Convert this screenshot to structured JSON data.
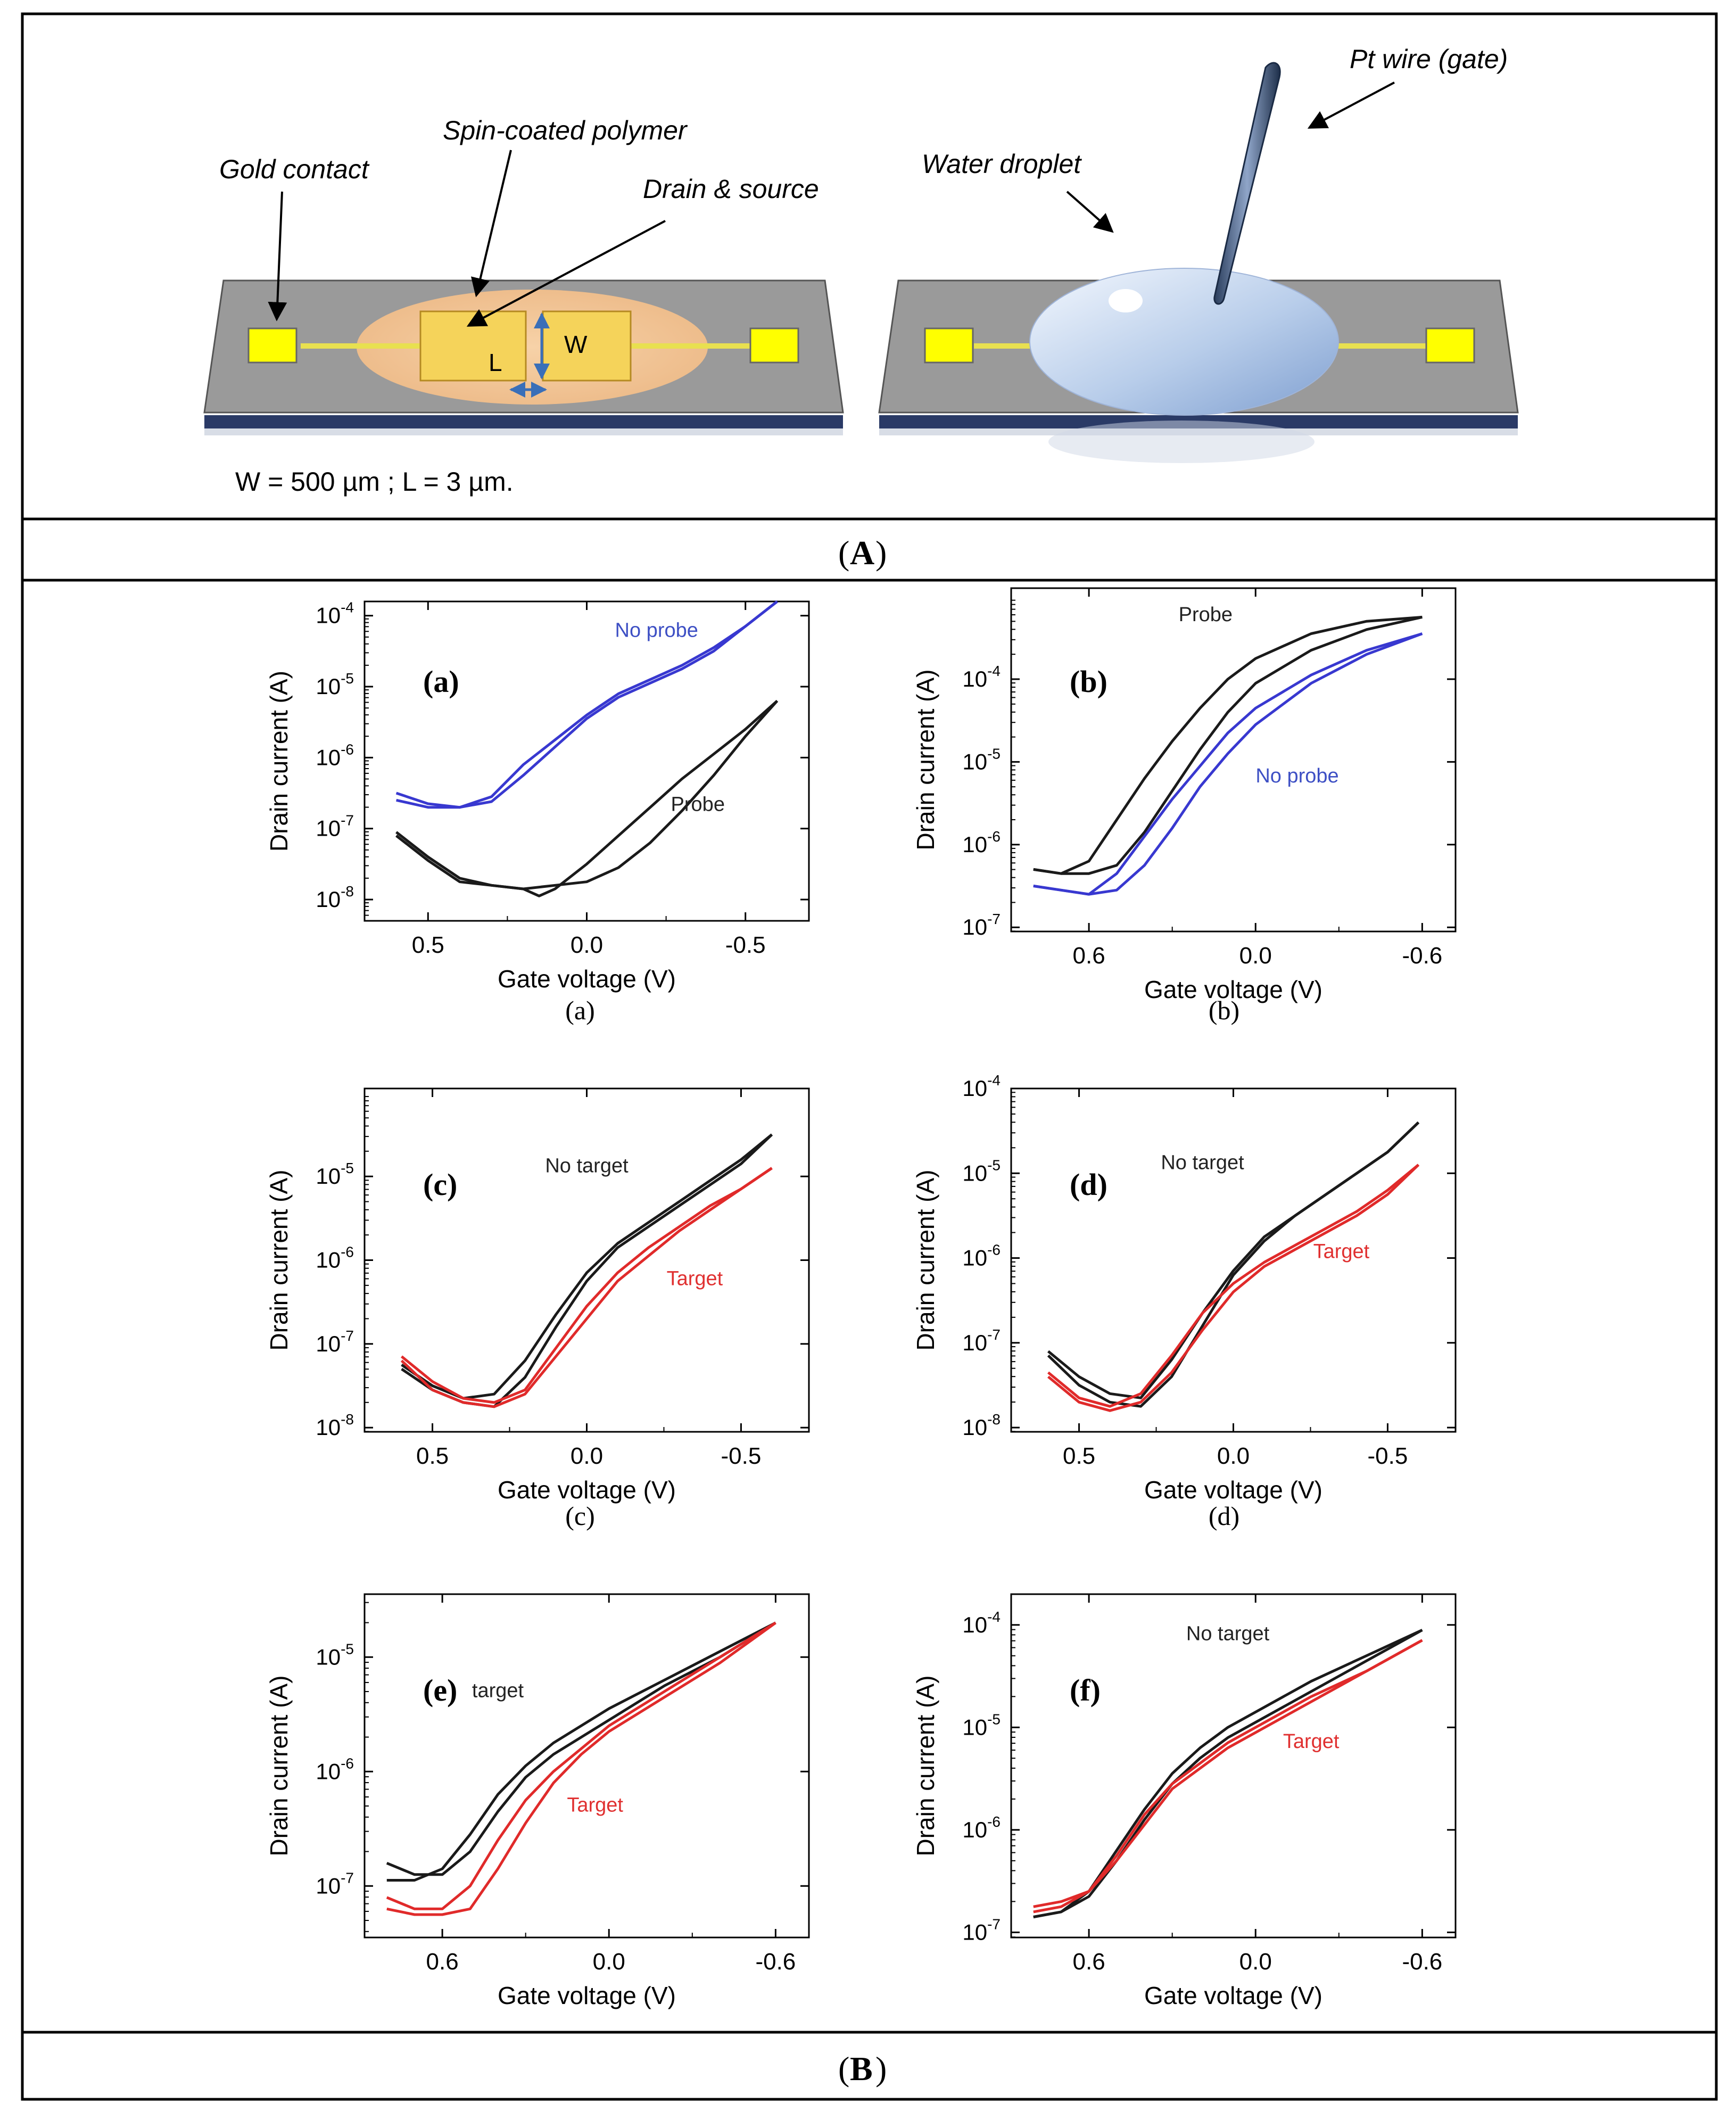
{
  "diagram": {
    "labels": {
      "gold_contact": "Gold contact",
      "spin_coated": "Spin-coated polymer",
      "drain_source": "Drain & source",
      "L": "L",
      "W": "W",
      "water_droplet": "Water droplet",
      "pt_wire": "Pt wire (gate)",
      "dimensions": "W = 500 µm ; L = 3 µm."
    },
    "colors": {
      "gold": "#f5d35a",
      "pad": "#ffff00",
      "substrate": "#9a9a9a",
      "polymer": "#f2c89a",
      "droplet": "#b8cdea"
    }
  },
  "captions": {
    "A": "A",
    "B": "B"
  },
  "chart_data": [
    {
      "id": "a",
      "type": "line",
      "panel_label": "(a)",
      "caption": "(a)",
      "xlabel": "Gate voltage (V)",
      "ylabel": "Drain current (A)",
      "xlim": [
        0.7,
        -0.7
      ],
      "xticks": [
        0.5,
        0.0,
        -0.5
      ],
      "xtick_labels": [
        "0.5",
        "0.0",
        "-0.5"
      ],
      "ylog": true,
      "ylim": [
        -8.3,
        -3.8
      ],
      "yticks": [
        -8,
        -7,
        -6,
        -5,
        -4
      ],
      "annotations": [
        {
          "text": "No probe",
          "color": "#3d4fc4",
          "x": -0.22,
          "y": -4.3
        },
        {
          "text": "Probe",
          "color": "#222222",
          "x": -0.35,
          "y": -6.75
        }
      ],
      "series": [
        {
          "name": "No probe",
          "color": "#3838d0",
          "x": [
            0.6,
            0.5,
            0.4,
            0.3,
            0.2,
            0.1,
            0.0,
            -0.1,
            -0.2,
            -0.3,
            -0.4,
            -0.5,
            -0.6
          ],
          "y": [
            -6.5,
            -6.65,
            -6.7,
            -6.62,
            -6.25,
            -5.85,
            -5.45,
            -5.15,
            -4.95,
            -4.75,
            -4.5,
            -4.15,
            -3.8
          ]
        },
        {
          "name": "No probe",
          "color": "#3838d0",
          "x": [
            0.6,
            0.5,
            0.4,
            0.3,
            0.2,
            0.1,
            0.0,
            -0.1,
            -0.2,
            -0.3,
            -0.4,
            -0.5,
            -0.6
          ],
          "y": [
            -6.6,
            -6.7,
            -6.7,
            -6.55,
            -6.1,
            -5.75,
            -5.4,
            -5.1,
            -4.9,
            -4.7,
            -4.45,
            -4.15,
            -3.8
          ]
        },
        {
          "name": "Probe",
          "color": "#1a1a1a",
          "x": [
            0.6,
            0.5,
            0.4,
            0.3,
            0.2,
            0.15,
            0.1,
            0.0,
            -0.1,
            -0.2,
            -0.3,
            -0.4,
            -0.5,
            -0.6
          ],
          "y": [
            -7.05,
            -7.4,
            -7.7,
            -7.8,
            -7.85,
            -7.95,
            -7.85,
            -7.5,
            -7.1,
            -6.7,
            -6.3,
            -5.95,
            -5.6,
            -5.2
          ]
        },
        {
          "name": "Probe",
          "color": "#1a1a1a",
          "x": [
            0.6,
            0.5,
            0.4,
            0.3,
            0.2,
            0.1,
            0.0,
            -0.1,
            -0.2,
            -0.3,
            -0.4,
            -0.5,
            -0.6
          ],
          "y": [
            -7.1,
            -7.45,
            -7.75,
            -7.8,
            -7.85,
            -7.8,
            -7.75,
            -7.55,
            -7.2,
            -6.75,
            -6.25,
            -5.7,
            -5.2
          ]
        }
      ]
    },
    {
      "id": "b",
      "type": "line",
      "panel_label": "(b)",
      "caption": "(b)",
      "xlabel": "Gate voltage (V)",
      "ylabel": "Drain current (A)",
      "xlim": [
        0.88,
        -0.72
      ],
      "xticks": [
        0.6,
        0.0,
        -0.6
      ],
      "xtick_labels": [
        "0.6",
        "0.0",
        "-0.6"
      ],
      "ylog": true,
      "ylim": [
        -7.05,
        -2.9
      ],
      "yticks": [
        -7,
        -6,
        -5,
        -4
      ],
      "annotations": [
        {
          "text": "Probe",
          "color": "#222222",
          "x": 0.18,
          "y": -3.3
        },
        {
          "text": "No probe",
          "color": "#3d4fc4",
          "x": -0.15,
          "y": -5.25
        }
      ],
      "series": [
        {
          "name": "Probe",
          "color": "#1a1a1a",
          "x": [
            0.8,
            0.7,
            0.6,
            0.5,
            0.4,
            0.3,
            0.2,
            0.1,
            0.0,
            -0.2,
            -0.4,
            -0.6
          ],
          "y": [
            -6.3,
            -6.35,
            -6.35,
            -6.25,
            -5.85,
            -5.35,
            -4.85,
            -4.4,
            -4.05,
            -3.65,
            -3.4,
            -3.25
          ]
        },
        {
          "name": "Probe",
          "color": "#1a1a1a",
          "x": [
            0.8,
            0.7,
            0.6,
            0.5,
            0.4,
            0.3,
            0.2,
            0.1,
            0.0,
            -0.2,
            -0.4,
            -0.6
          ],
          "y": [
            -6.3,
            -6.35,
            -6.2,
            -5.7,
            -5.2,
            -4.75,
            -4.35,
            -4.0,
            -3.75,
            -3.45,
            -3.3,
            -3.25
          ]
        },
        {
          "name": "No probe",
          "color": "#3838d0",
          "x": [
            0.8,
            0.7,
            0.6,
            0.5,
            0.4,
            0.3,
            0.2,
            0.1,
            0.0,
            -0.2,
            -0.4,
            -0.6
          ],
          "y": [
            -6.5,
            -6.55,
            -6.6,
            -6.55,
            -6.25,
            -5.8,
            -5.3,
            -4.9,
            -4.55,
            -4.05,
            -3.7,
            -3.45
          ]
        },
        {
          "name": "No probe",
          "color": "#3838d0",
          "x": [
            0.8,
            0.7,
            0.6,
            0.5,
            0.4,
            0.3,
            0.2,
            0.1,
            0.0,
            -0.2,
            -0.4,
            -0.6
          ],
          "y": [
            -6.5,
            -6.55,
            -6.6,
            -6.35,
            -5.9,
            -5.45,
            -5.05,
            -4.65,
            -4.35,
            -3.95,
            -3.65,
            -3.45
          ]
        }
      ]
    },
    {
      "id": "c",
      "type": "line",
      "panel_label": "(c)",
      "caption": "(c)",
      "xlabel": "Gate voltage (V)",
      "ylabel": "Drain current (A)",
      "xlim": [
        0.72,
        -0.72
      ],
      "xticks": [
        0.5,
        0.0,
        -0.5
      ],
      "xtick_labels": [
        "0.5",
        "0.0",
        "-0.5"
      ],
      "ylog": true,
      "ylim": [
        -8.05,
        -3.95
      ],
      "yticks": [
        -8,
        -7,
        -6,
        -5
      ],
      "annotations": [
        {
          "text": "No target",
          "color": "#222222",
          "x": 0.0,
          "y": -4.95
        },
        {
          "text": "Target",
          "color": "#e03030",
          "x": -0.35,
          "y": -6.3
        }
      ],
      "series": [
        {
          "name": "No target",
          "color": "#1a1a1a",
          "x": [
            0.6,
            0.5,
            0.4,
            0.3,
            0.2,
            0.1,
            0.0,
            -0.1,
            -0.2,
            -0.3,
            -0.4,
            -0.5,
            -0.6
          ],
          "y": [
            -7.25,
            -7.5,
            -7.65,
            -7.6,
            -7.2,
            -6.65,
            -6.15,
            -5.8,
            -5.55,
            -5.3,
            -5.05,
            -4.8,
            -4.5
          ]
        },
        {
          "name": "No target",
          "color": "#1a1a1a",
          "x": [
            0.6,
            0.5,
            0.4,
            0.3,
            0.2,
            0.1,
            0.0,
            -0.1,
            -0.2,
            -0.3,
            -0.4,
            -0.5,
            -0.6
          ],
          "y": [
            -7.3,
            -7.55,
            -7.7,
            -7.75,
            -7.4,
            -6.8,
            -6.25,
            -5.85,
            -5.6,
            -5.35,
            -5.1,
            -4.85,
            -4.5
          ]
        },
        {
          "name": "Target",
          "color": "#e02a2a",
          "x": [
            0.6,
            0.5,
            0.4,
            0.3,
            0.2,
            0.1,
            0.0,
            -0.1,
            -0.2,
            -0.3,
            -0.4,
            -0.5,
            -0.6
          ],
          "y": [
            -7.15,
            -7.45,
            -7.65,
            -7.7,
            -7.55,
            -7.05,
            -6.55,
            -6.15,
            -5.85,
            -5.6,
            -5.35,
            -5.15,
            -4.9
          ]
        },
        {
          "name": "Target",
          "color": "#e02a2a",
          "x": [
            0.6,
            0.5,
            0.4,
            0.3,
            0.2,
            0.1,
            0.0,
            -0.1,
            -0.2,
            -0.3,
            -0.4,
            -0.5,
            -0.6
          ],
          "y": [
            -7.2,
            -7.55,
            -7.7,
            -7.75,
            -7.6,
            -7.15,
            -6.7,
            -6.25,
            -5.95,
            -5.65,
            -5.4,
            -5.15,
            -4.9
          ]
        }
      ]
    },
    {
      "id": "d",
      "type": "line",
      "panel_label": "(d)",
      "caption": "(d)",
      "xlabel": "Gate voltage (V)",
      "ylabel": "Drain current (A)",
      "xlim": [
        0.72,
        -0.72
      ],
      "xticks": [
        0.5,
        0.0,
        -0.5
      ],
      "xtick_labels": [
        "0.5",
        "0.0",
        "-0.5"
      ],
      "ylog": true,
      "ylim": [
        -8.05,
        -4.0
      ],
      "yticks": [
        -8,
        -7,
        -6,
        -5,
        -4
      ],
      "annotations": [
        {
          "text": "No target",
          "color": "#222222",
          "x": 0.1,
          "y": -4.95
        },
        {
          "text": "Target",
          "color": "#e03030",
          "x": -0.35,
          "y": -6.0
        }
      ],
      "series": [
        {
          "name": "No target",
          "color": "#1a1a1a",
          "x": [
            0.6,
            0.5,
            0.4,
            0.3,
            0.2,
            0.1,
            0.0,
            -0.1,
            -0.2,
            -0.3,
            -0.4,
            -0.5,
            -0.6
          ],
          "y": [
            -7.1,
            -7.4,
            -7.6,
            -7.65,
            -7.2,
            -6.65,
            -6.15,
            -5.75,
            -5.5,
            -5.25,
            -5.0,
            -4.75,
            -4.4
          ]
        },
        {
          "name": "No target",
          "color": "#1a1a1a",
          "x": [
            0.6,
            0.5,
            0.4,
            0.3,
            0.2,
            0.1,
            0.0,
            -0.1,
            -0.2,
            -0.3,
            -0.4,
            -0.5,
            -0.6
          ],
          "y": [
            -7.15,
            -7.5,
            -7.7,
            -7.75,
            -7.4,
            -6.8,
            -6.2,
            -5.8,
            -5.5,
            -5.25,
            -5.0,
            -4.75,
            -4.4
          ]
        },
        {
          "name": "Target",
          "color": "#e02a2a",
          "x": [
            0.6,
            0.5,
            0.4,
            0.3,
            0.2,
            0.1,
            0.0,
            -0.1,
            -0.2,
            -0.3,
            -0.4,
            -0.5,
            -0.6
          ],
          "y": [
            -7.35,
            -7.65,
            -7.75,
            -7.6,
            -7.15,
            -6.65,
            -6.3,
            -6.05,
            -5.85,
            -5.65,
            -5.45,
            -5.2,
            -4.9
          ]
        },
        {
          "name": "Target",
          "color": "#e02a2a",
          "x": [
            0.6,
            0.5,
            0.4,
            0.3,
            0.2,
            0.1,
            0.0,
            -0.1,
            -0.2,
            -0.3,
            -0.4,
            -0.5,
            -0.6
          ],
          "y": [
            -7.4,
            -7.7,
            -7.8,
            -7.7,
            -7.35,
            -6.85,
            -6.4,
            -6.1,
            -5.9,
            -5.7,
            -5.5,
            -5.25,
            -4.9
          ]
        }
      ]
    },
    {
      "id": "e",
      "type": "line",
      "panel_label": "(e)",
      "caption": "",
      "xlabel": "Gate voltage (V)",
      "ylabel": "Drain current (A)",
      "xlim": [
        0.88,
        -0.72
      ],
      "xticks": [
        0.6,
        0.0,
        -0.6
      ],
      "xtick_labels": [
        "0.6",
        "0.0",
        "-0.6"
      ],
      "ylog": true,
      "ylim": [
        -7.45,
        -4.45
      ],
      "yticks": [
        -7,
        -6,
        -5
      ],
      "annotations": [
        {
          "text": "target",
          "color": "#222222",
          "x": 0.4,
          "y": -5.35
        },
        {
          "text": "Target",
          "color": "#e03030",
          "x": 0.05,
          "y": -6.35
        }
      ],
      "series": [
        {
          "name": "target",
          "color": "#1a1a1a",
          "x": [
            0.8,
            0.7,
            0.6,
            0.5,
            0.4,
            0.3,
            0.2,
            0.1,
            0.0,
            -0.2,
            -0.4,
            -0.6
          ],
          "y": [
            -6.8,
            -6.9,
            -6.9,
            -6.7,
            -6.35,
            -6.05,
            -5.85,
            -5.7,
            -5.55,
            -5.25,
            -5.0,
            -4.7
          ]
        },
        {
          "name": "target",
          "color": "#1a1a1a",
          "x": [
            0.8,
            0.7,
            0.6,
            0.5,
            0.4,
            0.3,
            0.2,
            0.1,
            0.0,
            -0.2,
            -0.4,
            -0.6
          ],
          "y": [
            -6.95,
            -6.95,
            -6.85,
            -6.55,
            -6.2,
            -5.95,
            -5.75,
            -5.6,
            -5.45,
            -5.2,
            -4.95,
            -4.7
          ]
        },
        {
          "name": "Target",
          "color": "#e02a2a",
          "x": [
            0.8,
            0.7,
            0.6,
            0.5,
            0.4,
            0.3,
            0.2,
            0.1,
            0.0,
            -0.2,
            -0.4,
            -0.6
          ],
          "y": [
            -7.1,
            -7.2,
            -7.2,
            -7.0,
            -6.6,
            -6.25,
            -6.0,
            -5.8,
            -5.6,
            -5.3,
            -5.0,
            -4.7
          ]
        },
        {
          "name": "Target",
          "color": "#e02a2a",
          "x": [
            0.8,
            0.7,
            0.6,
            0.5,
            0.4,
            0.3,
            0.2,
            0.1,
            0.0,
            -0.2,
            -0.4,
            -0.6
          ],
          "y": [
            -7.2,
            -7.25,
            -7.25,
            -7.2,
            -6.85,
            -6.45,
            -6.1,
            -5.85,
            -5.65,
            -5.35,
            -5.05,
            -4.7
          ]
        }
      ]
    },
    {
      "id": "f",
      "type": "line",
      "panel_label": "(f)",
      "caption": "",
      "xlabel": "Gate voltage (V)",
      "ylabel": "Drain current (A)",
      "xlim": [
        0.88,
        -0.72
      ],
      "xticks": [
        0.6,
        0.0,
        -0.6
      ],
      "xtick_labels": [
        "0.6",
        "0.0",
        "-0.6"
      ],
      "ylog": true,
      "ylim": [
        -7.05,
        -3.7
      ],
      "yticks": [
        -7,
        -6,
        -5,
        -4
      ],
      "annotations": [
        {
          "text": "No target",
          "color": "#222222",
          "x": 0.1,
          "y": -4.15
        },
        {
          "text": "Target",
          "color": "#e03030",
          "x": -0.2,
          "y": -5.2
        }
      ],
      "series": [
        {
          "name": "No target",
          "color": "#1a1a1a",
          "x": [
            0.8,
            0.7,
            0.6,
            0.5,
            0.4,
            0.3,
            0.2,
            0.1,
            0.0,
            -0.2,
            -0.4,
            -0.6
          ],
          "y": [
            -6.85,
            -6.8,
            -6.6,
            -6.2,
            -5.8,
            -5.45,
            -5.2,
            -5.0,
            -4.85,
            -4.55,
            -4.3,
            -4.05
          ]
        },
        {
          "name": "No target",
          "color": "#1a1a1a",
          "x": [
            0.8,
            0.7,
            0.6,
            0.5,
            0.4,
            0.3,
            0.2,
            0.1,
            0.0,
            -0.2,
            -0.4,
            -0.6
          ],
          "y": [
            -6.85,
            -6.8,
            -6.65,
            -6.3,
            -5.9,
            -5.55,
            -5.3,
            -5.1,
            -4.95,
            -4.65,
            -4.35,
            -4.05
          ]
        },
        {
          "name": "Target",
          "color": "#e02a2a",
          "x": [
            0.8,
            0.7,
            0.6,
            0.5,
            0.4,
            0.3,
            0.2,
            0.1,
            0.0,
            -0.2,
            -0.4,
            -0.6
          ],
          "y": [
            -6.75,
            -6.7,
            -6.6,
            -6.25,
            -5.85,
            -5.55,
            -5.35,
            -5.15,
            -5.0,
            -4.7,
            -4.45,
            -4.15
          ]
        },
        {
          "name": "Target",
          "color": "#e02a2a",
          "x": [
            0.8,
            0.7,
            0.6,
            0.5,
            0.4,
            0.3,
            0.2,
            0.1,
            0.0,
            -0.2,
            -0.4,
            -0.6
          ],
          "y": [
            -6.8,
            -6.75,
            -6.6,
            -6.3,
            -5.95,
            -5.6,
            -5.4,
            -5.2,
            -5.05,
            -4.75,
            -4.45,
            -4.15
          ]
        }
      ]
    }
  ]
}
